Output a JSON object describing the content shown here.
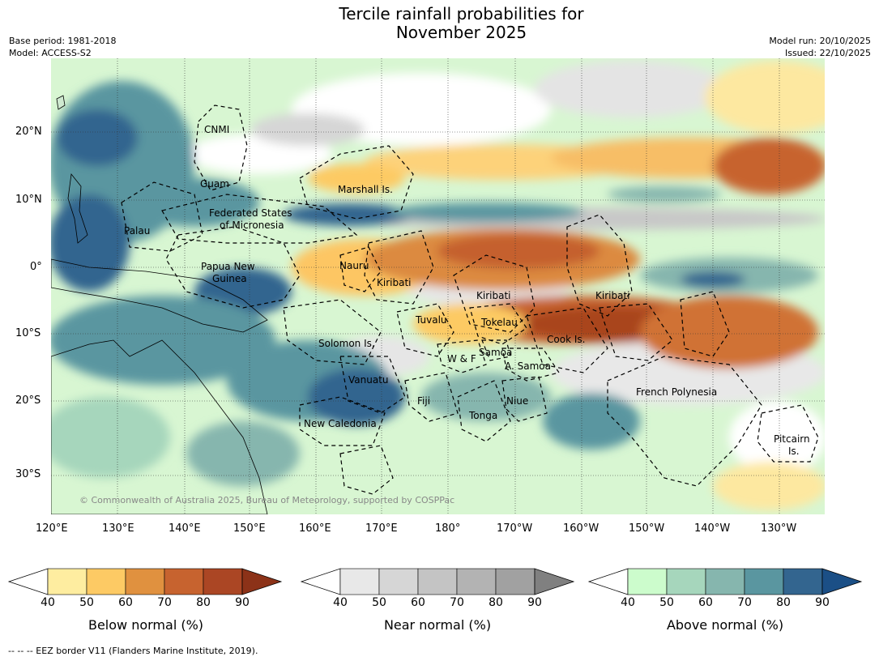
{
  "header": {
    "title_line1": "Tercile rainfall probabilities for",
    "title_line2": "November 2025",
    "base_period": "Base period: 1981-2018",
    "model": "Model: ACCESS-S2",
    "model_run": "Model run: 20/10/2025",
    "issued": "Issued: 22/10/2025"
  },
  "axes": {
    "lat_ticks": [
      "20°N",
      "10°N",
      "0°",
      "10°S",
      "20°S",
      "30°S"
    ],
    "lon_ticks": [
      "120°E",
      "130°E",
      "140°E",
      "150°E",
      "160°E",
      "170°E",
      "180°",
      "170°W",
      "160°W",
      "150°W",
      "140°W",
      "130°W"
    ]
  },
  "regions": [
    "CNMI",
    "Guam",
    "Marshall Is.",
    "Federated States",
    "of Micronesia",
    "Palau",
    "Papua New",
    "Guinea",
    "Nauru",
    "Kiribati",
    "Kiribati",
    "Kiribati",
    "Tuvalu",
    "Tokelau",
    "Cook Is.",
    "Solomon Is.",
    "W & F",
    "Samoa",
    "A. Samoa",
    "Vanuatu",
    "Fiji",
    "Niue",
    "French Polynesia",
    "Tonga",
    "New Caledonia",
    "Pitcairn",
    "Is."
  ],
  "copyright": "© Commonwealth of Australia 2025, Bureau of Meteorology, supported by COSPPac",
  "legends": [
    {
      "label": "Below normal (%)",
      "ticks": [
        "40",
        "50",
        "60",
        "70",
        "80",
        "90"
      ],
      "colors": [
        "#ffffff",
        "#feeda0",
        "#fdca64",
        "#e0913f",
        "#c7632f",
        "#ab4624",
        "#8c3218"
      ]
    },
    {
      "label": "Near normal (%)",
      "ticks": [
        "40",
        "50",
        "60",
        "70",
        "80",
        "90"
      ],
      "colors": [
        "#ffffff",
        "#e8e8e8",
        "#d6d6d6",
        "#c4c4c4",
        "#b3b3b3",
        "#a1a1a1",
        "#808080"
      ]
    },
    {
      "label": "Above normal (%)",
      "ticks": [
        "40",
        "50",
        "60",
        "70",
        "80",
        "90"
      ],
      "colors": [
        "#ffffff",
        "#ccfccc",
        "#a6d6bc",
        "#86b6ae",
        "#5a96a0",
        "#33658f",
        "#1b4f86"
      ]
    }
  ],
  "eez_note": "--  --  -- EEZ border V11 (Flanders Marine Institute, 2019)."
}
